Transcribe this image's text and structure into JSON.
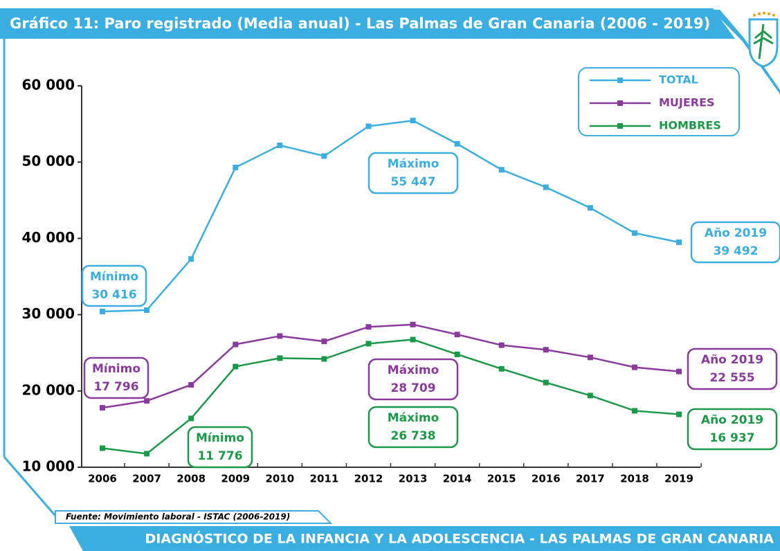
{
  "chart_data": {
    "type": "line",
    "title": "Gráfico 11: Paro registrado (Media anual) - Las Palmas de Gran Canaria (2006 - 2019)",
    "source": "Fuente: Movimiento laboral -  ISTAC (2006-2019)",
    "footer": "DIAGNÓSTICO DE LA INFANCIA Y LA ADOLESCENCIA - LAS PALMAS DE GRAN CANARIA",
    "categories": [
      "2006",
      "2007",
      "2008",
      "2009",
      "2010",
      "2011",
      "2012",
      "2013",
      "2014",
      "2015",
      "2016",
      "2017",
      "2018",
      "2019"
    ],
    "ylim": [
      10000,
      60000
    ],
    "yticks": [
      {
        "value": 10000,
        "label": "10 000"
      },
      {
        "value": 20000,
        "label": "20 000"
      },
      {
        "value": 30000,
        "label": "30 000"
      },
      {
        "value": 40000,
        "label": "40 000"
      },
      {
        "value": 50000,
        "label": "50 000"
      },
      {
        "value": 60000,
        "label": "60 000"
      }
    ],
    "grid": false,
    "legend": "upper right",
    "series": [
      {
        "name": "TOTAL",
        "color": "#3aaee0",
        "values": [
          30416,
          30600,
          37300,
          49300,
          52200,
          50800,
          54700,
          55447,
          52400,
          49000,
          46700,
          44000,
          40700,
          39492
        ],
        "annotations": [
          {
            "label": "Mínimo",
            "value_label": "30 416"
          },
          {
            "label": "Máximo",
            "value_label": "55 447"
          },
          {
            "label": "Año 2019",
            "value_label": "39 492"
          }
        ]
      },
      {
        "name": "MUJERES",
        "color": "#8a3a9c",
        "values": [
          17796,
          18700,
          20800,
          26100,
          27200,
          26500,
          28400,
          28709,
          27400,
          26000,
          25400,
          24400,
          23100,
          22555
        ],
        "annotations": [
          {
            "label": "Mínimo",
            "value_label": "17 796"
          },
          {
            "label": "Máximo",
            "value_label": "28 709"
          },
          {
            "label": "Año 2019",
            "value_label": "22 555"
          }
        ]
      },
      {
        "name": "HOMBRES",
        "color": "#1a9a48",
        "values": [
          12500,
          11776,
          16400,
          23200,
          24300,
          24200,
          26200,
          26738,
          24800,
          22900,
          21100,
          19400,
          17400,
          16937
        ],
        "annotations": [
          {
            "label": "Mínimo",
            "value_label": "11 776"
          },
          {
            "label": "Máximo",
            "value_label": "26 738"
          },
          {
            "label": "Año 2019",
            "value_label": "16 937"
          }
        ]
      }
    ]
  }
}
